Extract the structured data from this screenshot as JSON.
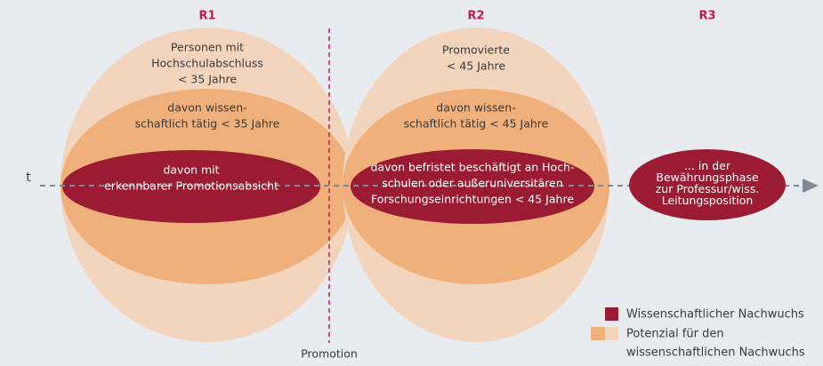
{
  "regions": [
    "R1",
    "R2",
    "R3"
  ],
  "axis_label": "t",
  "milestone": "Promotion",
  "r1": {
    "outer": [
      "Personen mit",
      "Hochschulabschluss",
      "< 35 Jahre"
    ],
    "middle": [
      "davon wissen-",
      "schaftlich tätig < 35 Jahre"
    ],
    "inner": [
      "davon mit",
      "erkennbarer Promotionsabsicht"
    ]
  },
  "r2": {
    "outer": [
      "Promovierte",
      "< 45 Jahre"
    ],
    "middle": [
      "davon wissen-",
      "schaftlich tätig < 45 Jahre"
    ],
    "inner": [
      "davon befristet beschäftigt an Hoch-",
      "schulen oder außeruniversitären",
      "Forschungseinrichtungen < 45 Jahre"
    ]
  },
  "r3": {
    "inner": [
      "... in der",
      "Bewährungsphase",
      "zur Professur/wiss.",
      "Leitungsposition"
    ]
  },
  "legend": {
    "dark": "Wissenschaftlicher Nachwuchs",
    "light": [
      "Potenzial für den",
      "wissenschaftlichen Nachwuchs"
    ]
  }
}
